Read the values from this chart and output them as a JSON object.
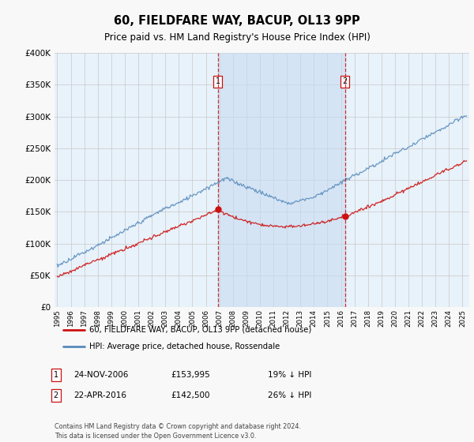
{
  "title": "60, FIELDFARE WAY, BACUP, OL13 9PP",
  "subtitle": "Price paid vs. HM Land Registry's House Price Index (HPI)",
  "legend_line1": "60, FIELDFARE WAY, BACUP, OL13 9PP (detached house)",
  "legend_line2": "HPI: Average price, detached house, Rossendale",
  "footer": "Contains HM Land Registry data © Crown copyright and database right 2024.\nThis data is licensed under the Open Government Licence v3.0.",
  "ann1_date": "24-NOV-2006",
  "ann1_price": "£153,995",
  "ann1_pct": "19% ↓ HPI",
  "ann1_year": 2006.9,
  "ann2_date": "22-APR-2016",
  "ann2_price": "£142,500",
  "ann2_pct": "26% ↓ HPI",
  "ann2_year": 2016.3,
  "ann1_price_val": 153995,
  "ann2_price_val": 142500,
  "ylim": [
    0,
    400000
  ],
  "xlim_start": 1994.8,
  "xlim_end": 2025.5,
  "hpi_color": "#5588bb",
  "property_color": "#cc1111",
  "vline_color": "#cc1111",
  "grid_color": "#c8c8c8",
  "plot_bg": "#e8f2fa",
  "shade_color": "#c8dcf0",
  "fig_bg": "#f8f8f8"
}
